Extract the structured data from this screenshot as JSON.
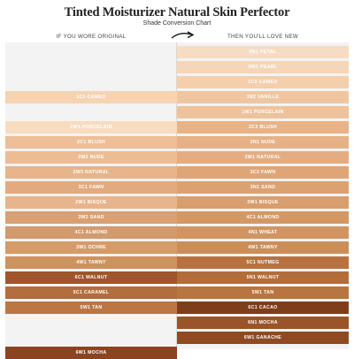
{
  "title": "Tinted Moisturizer Natural Skin Perfector",
  "subtitle": "Shade Conversion Chart",
  "left_header": "IF YOU WORE ORIGINAL",
  "right_header": "THEN YOU'LL LOVE NEW",
  "left": [
    {
      "label": "1C1 CAMEO",
      "row": 3,
      "color": "#f5d3b3"
    },
    {
      "label": "1W1 PORCELAIN",
      "row": 5,
      "color": "#f8dcc0"
    },
    {
      "label": "2C1 BLUSH",
      "row": 6,
      "color": "#edbe97"
    },
    {
      "label": "2W2 NUDE",
      "row": 7,
      "color": "#edbc93"
    },
    {
      "label": "2W3 NATURAL",
      "row": 8,
      "color": "#e8b48a"
    },
    {
      "label": "3C1 FAWN",
      "row": 9,
      "color": "#e2aa7f"
    },
    {
      "label": "2W1 BISQUE",
      "row": 10,
      "color": "#e8b48b"
    },
    {
      "label": "3W2 SAND",
      "row": 11,
      "color": "#d9a073"
    },
    {
      "label": "4C1 ALMOND",
      "row": 12,
      "color": "#d29a6d"
    },
    {
      "label": "3W1 OCHRE",
      "row": 13,
      "color": "#d59b69"
    },
    {
      "label": "4W1 TAWNY",
      "row": 14,
      "color": "#cd925e"
    },
    {
      "label": "6C1 WALNUT",
      "row": 15,
      "color": "#a0552a"
    },
    {
      "label": "5C1 CARAMEL",
      "row": 16,
      "color": "#b46d3c"
    },
    {
      "label": "5W1 TAN",
      "row": 17,
      "color": "#bb7644"
    },
    {
      "label": "6W1 MOCHA",
      "row": 20,
      "color": "#8c4420"
    }
  ],
  "right": [
    {
      "label": "0N1 PETAL",
      "row": 0,
      "color": "#f6dcc3"
    },
    {
      "label": "0W1 PEARL",
      "row": 1,
      "color": "#f5d6b8"
    },
    {
      "label": "1C0 CAMEO",
      "row": 2,
      "color": "#f3cfac"
    },
    {
      "label": "1N2 VANILLE",
      "row": 3,
      "color": "#efc6a0"
    },
    {
      "label": "1W1 PORCELAIN",
      "row": 4,
      "color": "#eec39c"
    },
    {
      "label": "2C3 BLUSH",
      "row": 5,
      "color": "#e7b387"
    },
    {
      "label": "2N1 NUDE",
      "row": 6,
      "color": "#e6b187"
    },
    {
      "label": "2W1 NATURAL",
      "row": 7,
      "color": "#e4ac80"
    },
    {
      "label": "3C2 FAWN",
      "row": 8,
      "color": "#dfa576"
    },
    {
      "label": "3N1 SAND",
      "row": 9,
      "color": "#dca171"
    },
    {
      "label": "3W1 BISQUE",
      "row": 10,
      "color": "#d99e6c"
    },
    {
      "label": "4C1 ALMOND",
      "row": 11,
      "color": "#d49864"
    },
    {
      "label": "4N1 WHEAT",
      "row": 12,
      "color": "#d29562"
    },
    {
      "label": "4W1 TAWNY",
      "row": 13,
      "color": "#cc8e59"
    },
    {
      "label": "5C1 NUTMEG",
      "row": 14,
      "color": "#b8723f"
    },
    {
      "label": "5N1 WALNUT",
      "row": 15,
      "color": "#b36d3a"
    },
    {
      "label": "5W1 TAN",
      "row": 16,
      "color": "#b9753f"
    },
    {
      "label": "6C1 CACAO",
      "row": 17,
      "color": "#7e3d1b"
    },
    {
      "label": "6N1 MOCHA",
      "row": 18,
      "color": "#9a5427"
    },
    {
      "label": "6W1 GANACHE",
      "row": 19,
      "color": "#8f4a22"
    }
  ]
}
